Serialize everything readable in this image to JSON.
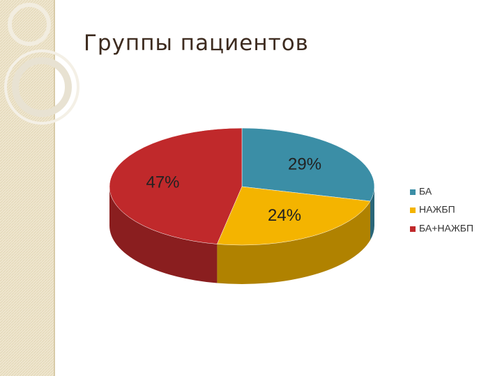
{
  "chart_data": {
    "type": "pie",
    "title": "Группы пациентов",
    "categories": [
      "БА",
      "НАЖБП",
      "БА+НАЖБП"
    ],
    "values": [
      29,
      24,
      47
    ],
    "value_labels": [
      "29%",
      "24%",
      "47%"
    ],
    "colors": [
      "#3b8ea6",
      "#f4b400",
      "#c0292b"
    ],
    "legend": "right"
  }
}
